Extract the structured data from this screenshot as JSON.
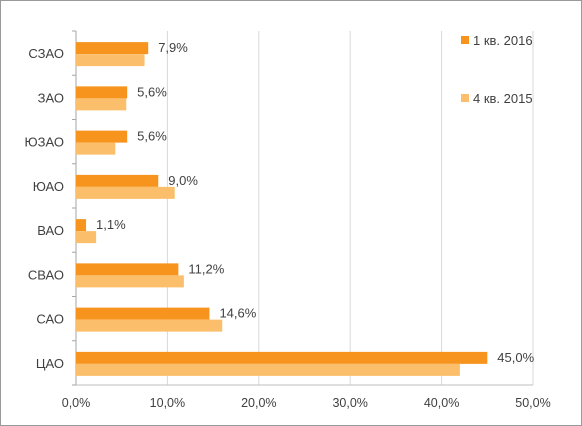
{
  "chart_data": {
    "type": "bar",
    "orientation": "horizontal",
    "categories": [
      "ЦАО",
      "САО",
      "СВАО",
      "ВАО",
      "ЮАО",
      "ЮЗАО",
      "ЗАО",
      "СЗАО"
    ],
    "series": [
      {
        "name": "1 кв. 2016",
        "color": "#f7941d",
        "values": [
          45.0,
          14.6,
          11.2,
          1.1,
          9.0,
          5.6,
          5.6,
          7.9
        ],
        "data_labels": [
          "45,0%",
          "14,6%",
          "11,2%",
          "1,1%",
          "9,0%",
          "5,6%",
          "5,6%",
          "7,9%"
        ]
      },
      {
        "name": "4 кв. 2015",
        "color": "#fbbf6b",
        "values": [
          42.0,
          16.0,
          11.8,
          2.2,
          10.8,
          4.3,
          5.5,
          7.5
        ]
      }
    ],
    "xlim": [
      0,
      50
    ],
    "xticks": [
      0,
      10,
      20,
      30,
      40,
      50
    ],
    "xtick_labels": [
      "0,0%",
      "10,0%",
      "20,0%",
      "30,0%",
      "40,0%",
      "50,0%"
    ],
    "grid": true,
    "legend_position": "top-right"
  }
}
